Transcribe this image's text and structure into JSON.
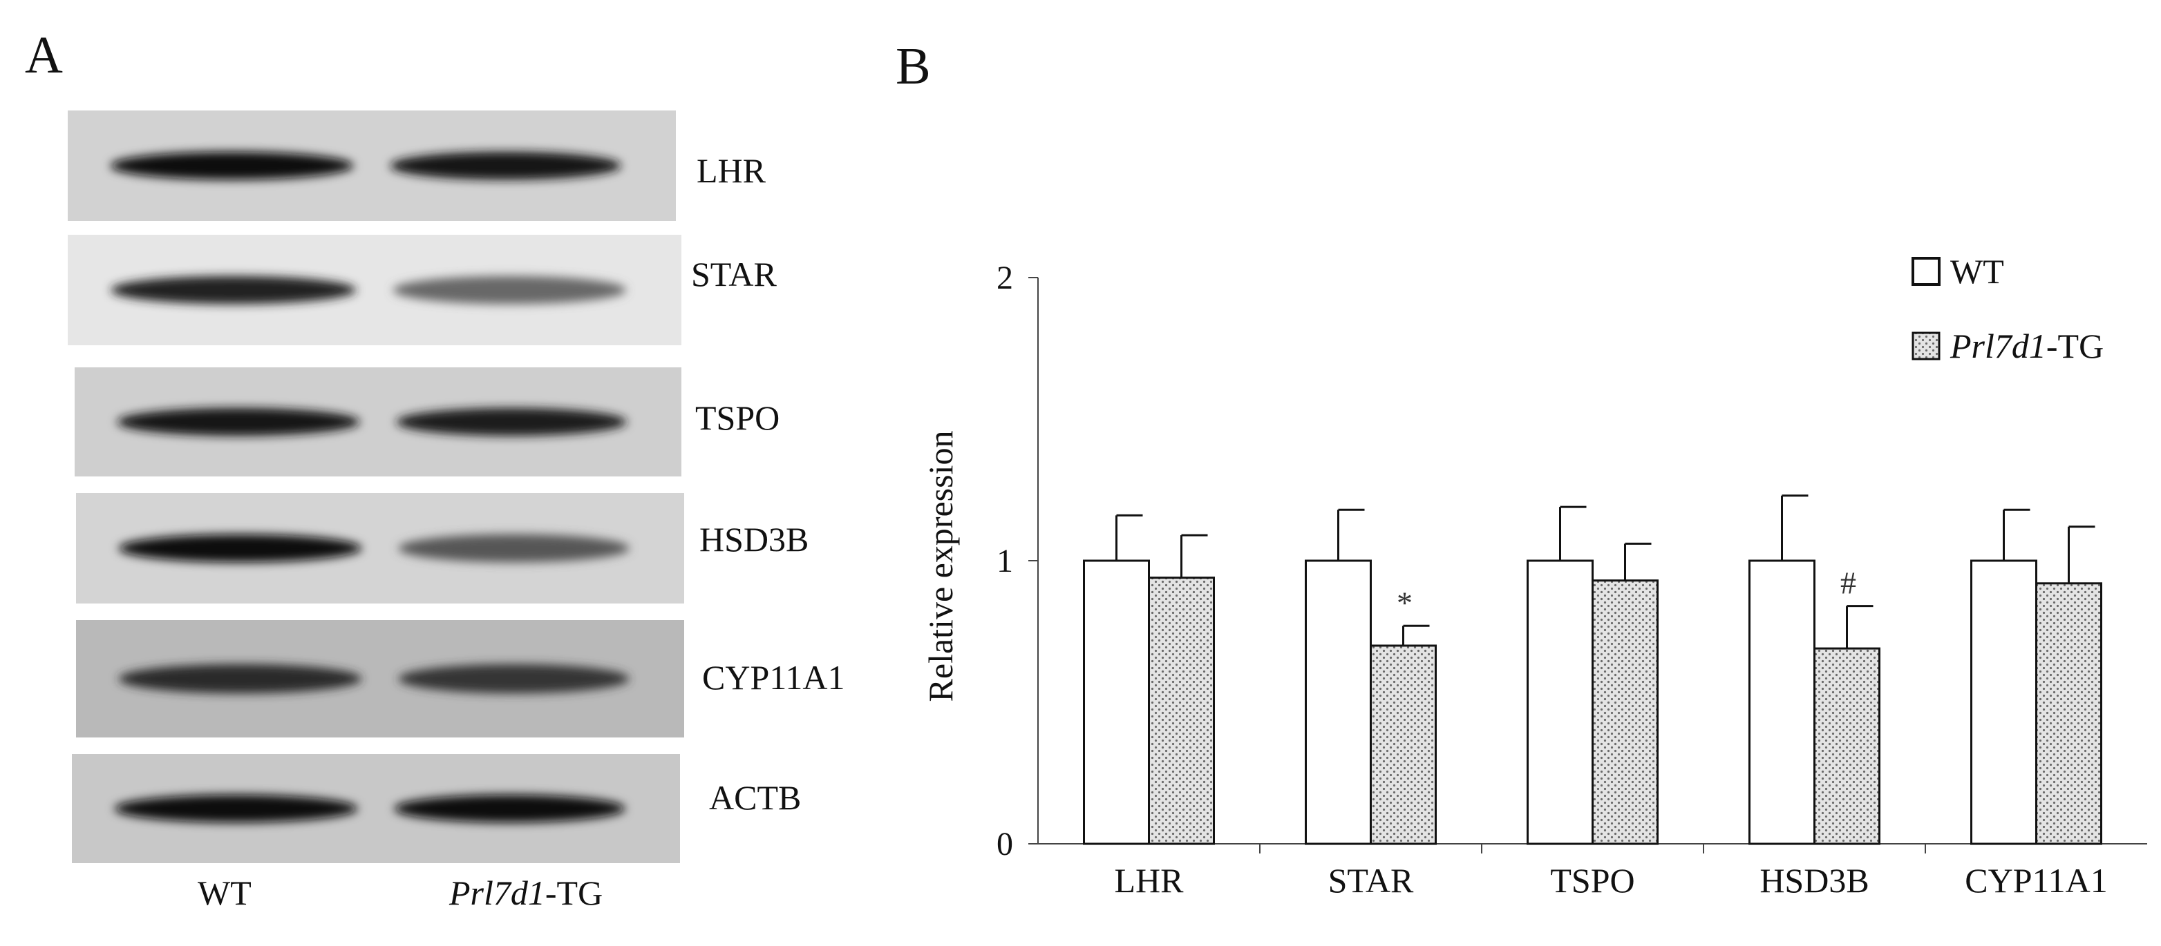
{
  "panels": {
    "a_label": "A",
    "b_label": "B"
  },
  "blot": {
    "lanes": [
      {
        "id": "wt",
        "label": "WT"
      },
      {
        "id": "tg",
        "label_italic": "Prl7d1",
        "label_rest": "-TG"
      }
    ],
    "rows": [
      {
        "label": "LHR",
        "wt_intensity": 1.0,
        "tg_intensity": 0.95
      },
      {
        "label": "STAR",
        "wt_intensity": 0.85,
        "tg_intensity": 0.45
      },
      {
        "label": "TSPO",
        "wt_intensity": 0.95,
        "tg_intensity": 0.9
      },
      {
        "label": "HSD3B",
        "wt_intensity": 1.0,
        "tg_intensity": 0.55
      },
      {
        "label": "CYP11A1",
        "wt_intensity": 0.8,
        "tg_intensity": 0.75
      },
      {
        "label": "ACTB",
        "wt_intensity": 1.0,
        "tg_intensity": 1.0
      }
    ]
  },
  "chart_data": {
    "type": "bar",
    "categories": [
      "LHR",
      "STAR",
      "TSPO",
      "HSD3B",
      "CYP11A1"
    ],
    "series": [
      {
        "name": "WT",
        "values": [
          1.0,
          1.0,
          1.0,
          1.0,
          1.0
        ],
        "errors": [
          0.16,
          0.18,
          0.19,
          0.23,
          0.18
        ],
        "fill": "#ffffff"
      },
      {
        "name_italic": "Prl7d1",
        "name_rest": "-TG",
        "values": [
          0.94,
          0.7,
          0.93,
          0.69,
          0.92
        ],
        "errors": [
          0.15,
          0.07,
          0.13,
          0.15,
          0.2
        ],
        "fill": "dotted-gray"
      }
    ],
    "annotations": [
      {
        "category": "STAR",
        "series": 1,
        "text": "*"
      },
      {
        "category": "HSD3B",
        "series": 1,
        "text": "#"
      }
    ],
    "ylabel": "Relative expression",
    "ylim": [
      0,
      2
    ],
    "yticks": [
      "0",
      "1",
      "2"
    ],
    "grid": false,
    "legend_position": "top-right"
  }
}
